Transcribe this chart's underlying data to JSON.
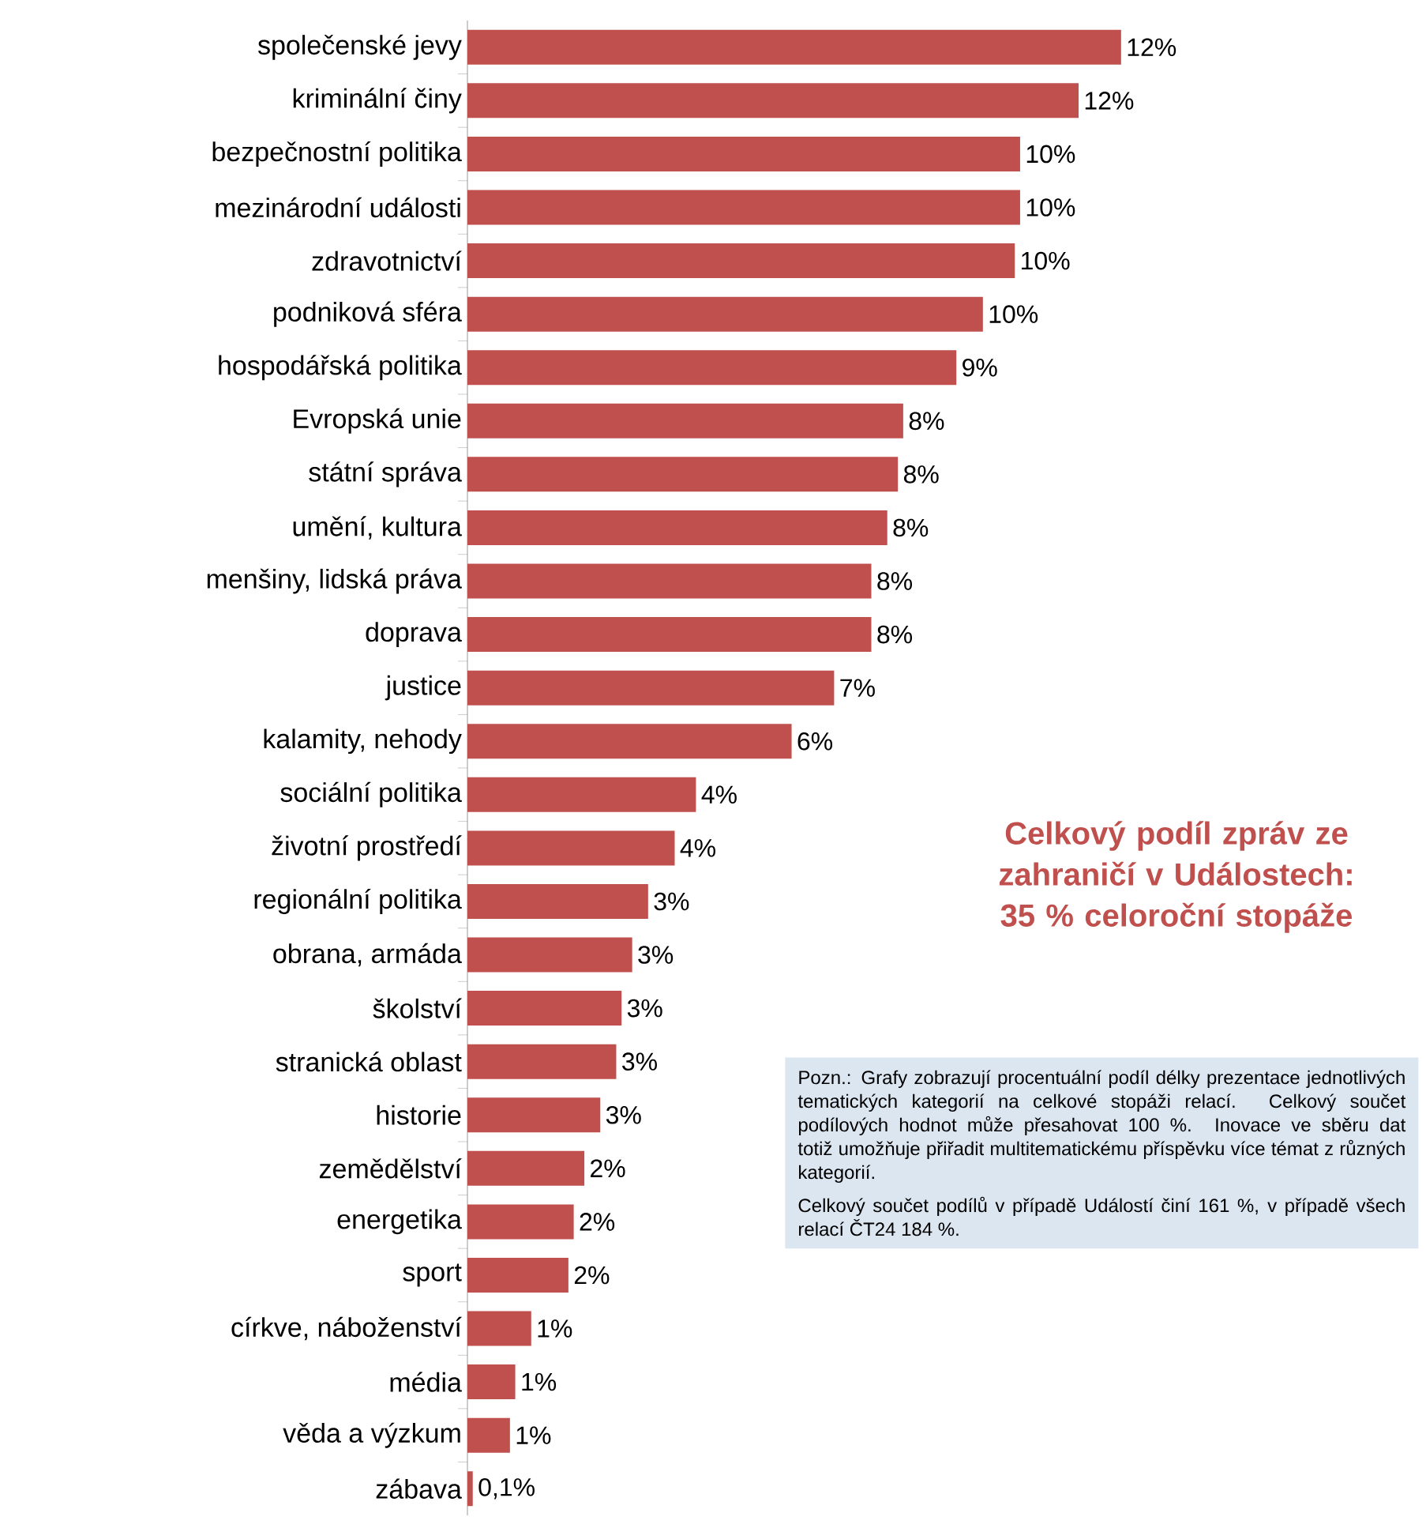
{
  "chart_data": {
    "type": "bar",
    "orientation": "horizontal",
    "color": "#c0504d",
    "categories": [
      "společenské jevy",
      "kriminální činy",
      "bezpečnostní politika",
      "mezinárodní události",
      "zdravotnictví",
      "podniková sféra",
      "hospodářská politika",
      "Evropská unie",
      "státní správa",
      "umění, kultura",
      "menšiny, lidská práva",
      "doprava",
      "justice",
      "kalamity, nehody",
      "sociální politika",
      "životní prostředí",
      "regionální politika",
      "obrana, armáda",
      "školství",
      "stranická oblast",
      "historie",
      "zemědělství",
      "energetika",
      "sport",
      "církve, náboženství",
      "média",
      "věda a výzkum",
      "zábava"
    ],
    "values": [
      12.3,
      11.5,
      10.4,
      10.4,
      10.3,
      9.7,
      9.2,
      8.2,
      8.1,
      7.9,
      7.6,
      7.6,
      6.9,
      6.1,
      4.3,
      3.9,
      3.4,
      3.1,
      2.9,
      2.8,
      2.5,
      2.2,
      2.0,
      1.9,
      1.2,
      0.9,
      0.8,
      0.1
    ],
    "value_labels": [
      "12%",
      "12%",
      "10%",
      "10%",
      "10%",
      "10%",
      "9%",
      "8%",
      "8%",
      "8%",
      "8%",
      "8%",
      "7%",
      "6%",
      "4%",
      "4%",
      "3%",
      "3%",
      "3%",
      "3%",
      "3%",
      "2%",
      "2%",
      "2%",
      "1%",
      "1%",
      "1%",
      "0,1%"
    ],
    "annotations": [
      "**Celkový podíl zpráv ze zahraničí v Událostech: 35 % celoroční stopáže**",
      "Pozn.: Grafy zobrazují procentuální podíl délky prezentace jednotlivých tematických kategorií na celkové stopáži relací. Celkový součet podílových hodnot může přesahovat 100 %. Inovace ve sběru dat totiž umožňuje přiřadit multitematickému příspěvku více témat z různých kategorií.",
      "Celkový součet podílů v případě Událostí činí 161 %, v případě všech relací ČT24 184 %."
    ]
  }
}
